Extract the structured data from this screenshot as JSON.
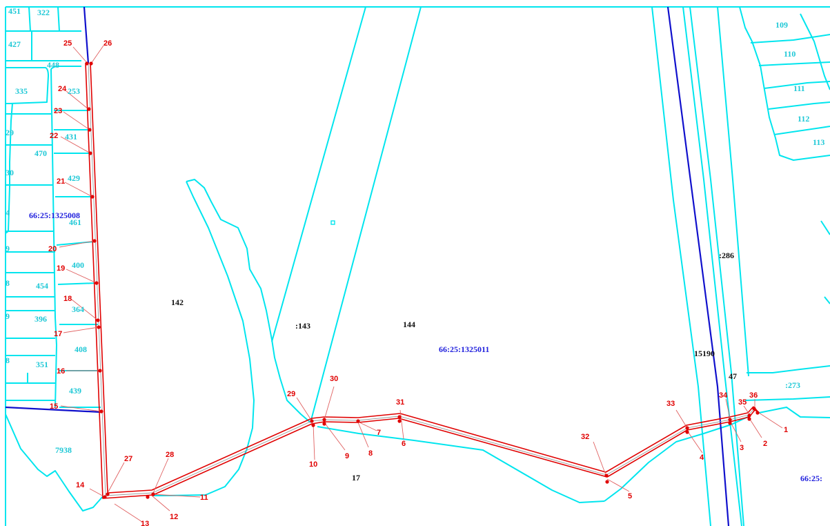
{
  "colors": {
    "parcel_boundary": "#00e5ee",
    "cadastral_quarter_boundary": "#1010cc",
    "route_outline": "#e00000",
    "route_axis": "#9a9a9a",
    "parcel_label": "#1ec8d6",
    "land_use_label": "#111111",
    "quarter_label": "#2020dd",
    "point_label": "#e00000",
    "background": "#ffffff"
  },
  "cadastral_quarters": [
    "66:25:1325008",
    "66:25:1325011",
    "66:25:"
  ],
  "parcel_labels": [
    "451",
    "322",
    "427",
    "448",
    "335",
    "253",
    "431",
    "470",
    "429",
    "461",
    "400",
    "454",
    "364",
    "396",
    "408",
    "351",
    "439",
    "7938",
    "109",
    "110",
    "111",
    "112",
    "113",
    ":273"
  ],
  "land_labels": [
    "142",
    ":143",
    "144",
    ":286",
    "15190",
    "47",
    "17"
  ],
  "partial_edge_labels": [
    "29",
    "30",
    "4",
    "9",
    "8",
    "9",
    "8"
  ],
  "route_points": [
    "1",
    "2",
    "3",
    "4",
    "5",
    "6",
    "7",
    "8",
    "9",
    "10",
    "11",
    "12",
    "13",
    "14",
    "15",
    "16",
    "17",
    "18",
    "19",
    "20",
    "21",
    "22",
    "23",
    "24",
    "25",
    "26",
    "27",
    "28",
    "29",
    "30",
    "31",
    "32",
    "33",
    "34",
    "35",
    "36"
  ]
}
